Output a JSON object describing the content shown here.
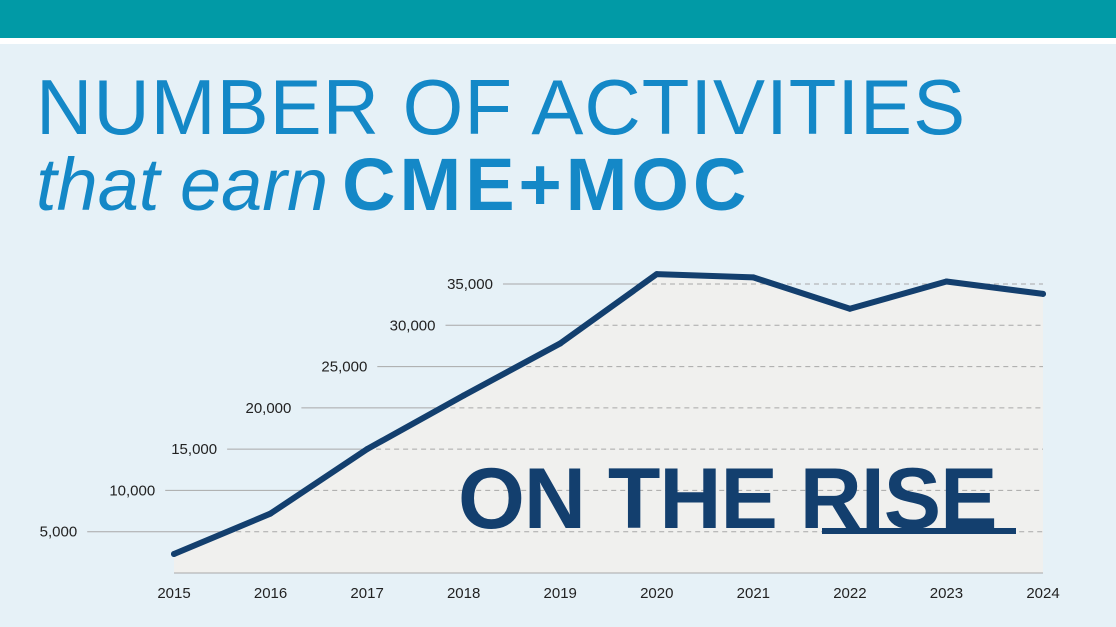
{
  "header": {
    "title_line1": "NUMBER OF ACTIVITIES",
    "title_line2_italic": "that earn",
    "title_line2_bold": "CME+MOC"
  },
  "callout": {
    "prefix": "ON THE ",
    "emphasis": "RISE"
  },
  "colors": {
    "top_band": "#019aa6",
    "background": "#e6f1f7",
    "title": "#1488c7",
    "line": "#133f6e",
    "area_fill": "#f0f0ee",
    "gridline": "#a8a8a8"
  },
  "chart_data": {
    "type": "area",
    "title": "",
    "xlabel": "",
    "ylabel": "",
    "x": [
      "2015",
      "2016",
      "2017",
      "2018",
      "2019",
      "2020",
      "2021",
      "2022",
      "2023",
      "2024"
    ],
    "values": [
      2300,
      7200,
      15000,
      21500,
      27800,
      36200,
      35800,
      32000,
      35300,
      33800
    ],
    "yticks": [
      5000,
      10000,
      15000,
      20000,
      25000,
      30000,
      35000
    ],
    "ytick_labels": [
      "5,000",
      "10,000",
      "15,000",
      "20,000",
      "25,000",
      "30,000",
      "35,000"
    ],
    "ylim": [
      0,
      35000
    ],
    "grid": true,
    "gridline_style": "dashed"
  }
}
